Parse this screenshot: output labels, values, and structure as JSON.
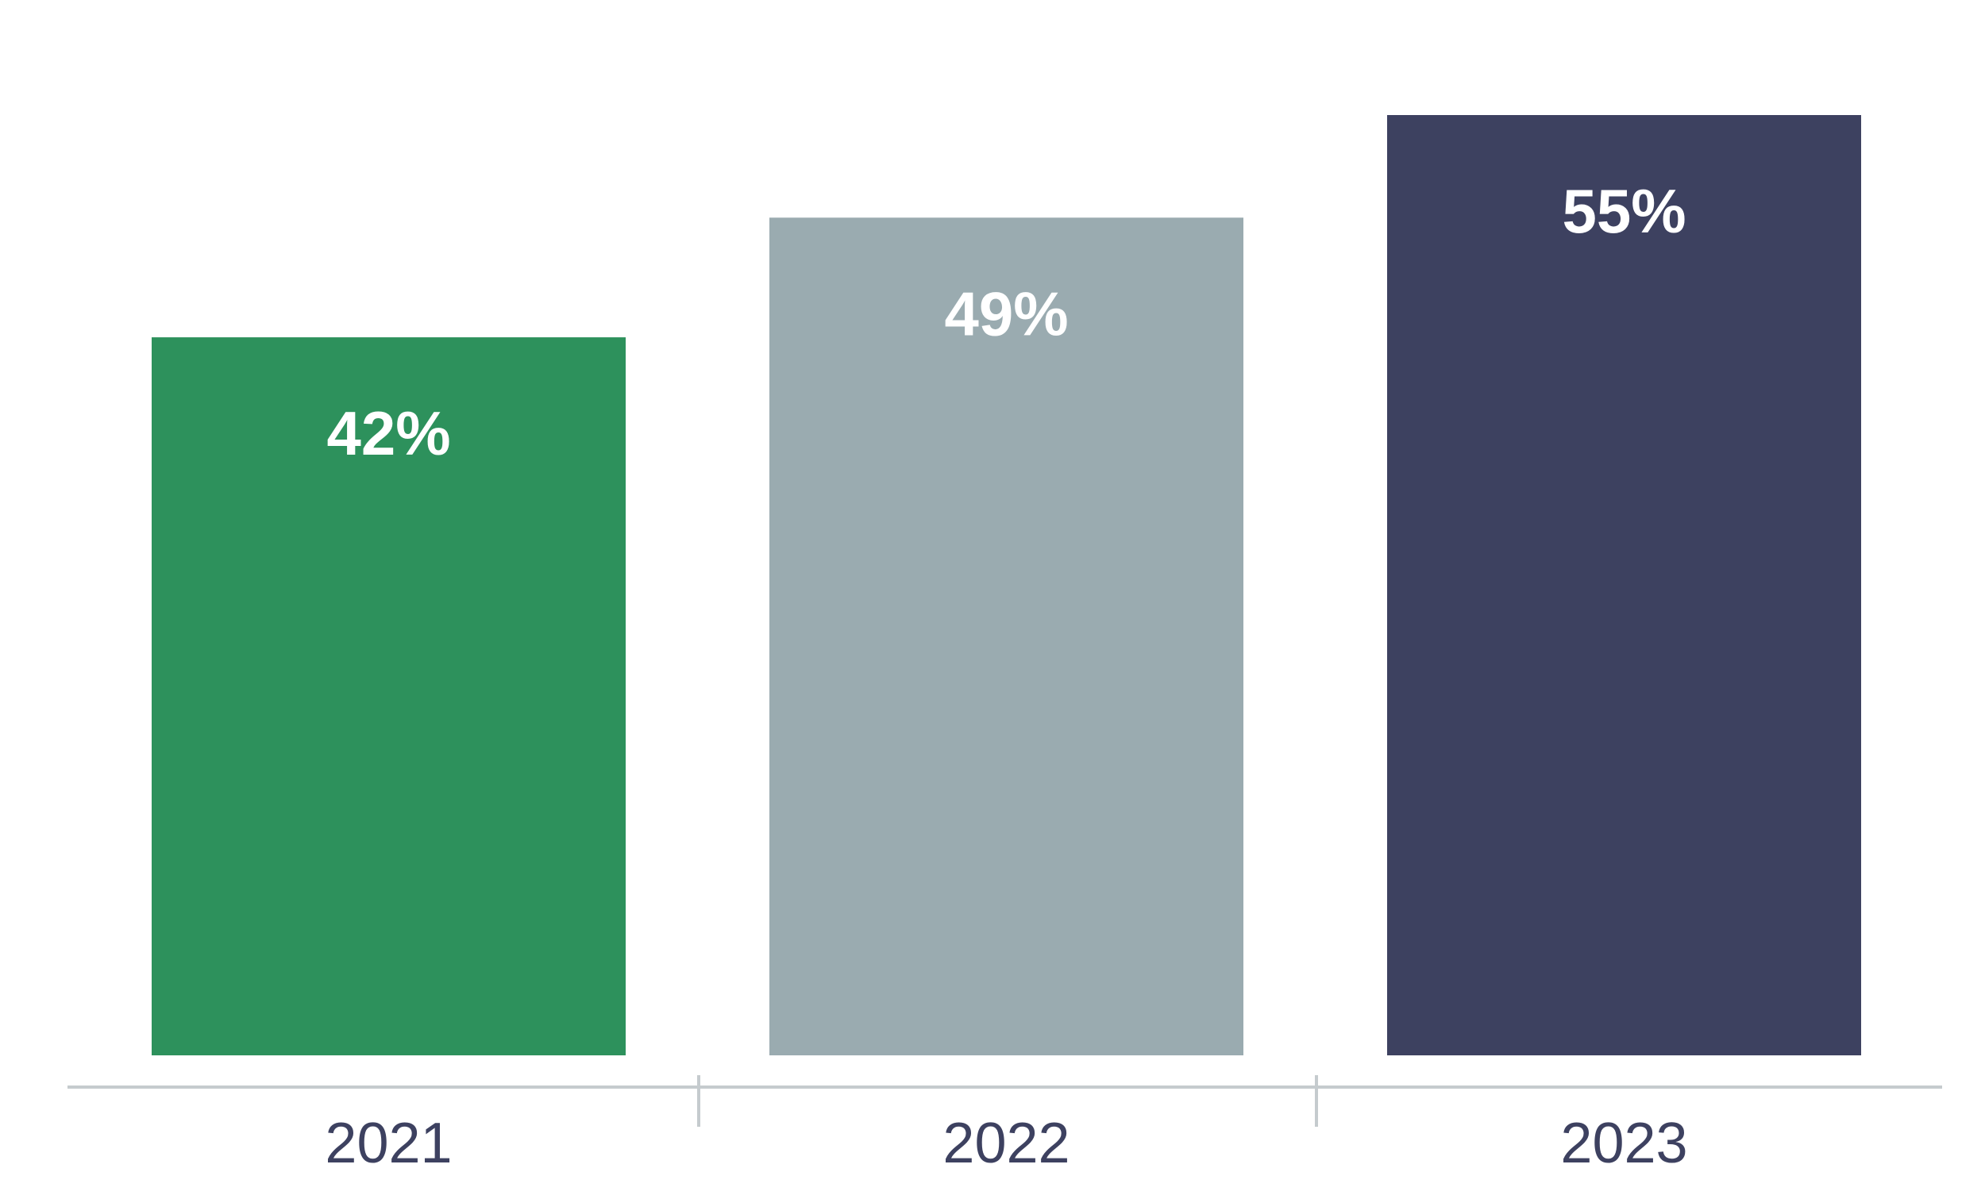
{
  "chart_data": {
    "type": "bar",
    "categories": [
      "2021",
      "2022",
      "2023"
    ],
    "values": [
      42,
      49,
      55
    ],
    "value_labels": [
      "42%",
      "49%",
      "55%"
    ],
    "colors": [
      "#2d915c",
      "#9aabb0",
      "#3d4160"
    ],
    "axis_color": "#c5cbce",
    "tick_label_color": "#3d4160",
    "value_label_color": "#ffffff",
    "title": "",
    "xlabel": "",
    "ylabel": "",
    "ylim": [
      0,
      55
    ],
    "grid": false
  }
}
